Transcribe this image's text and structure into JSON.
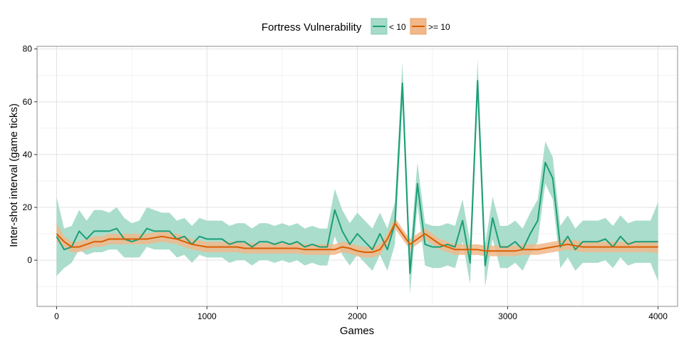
{
  "chart_data": {
    "type": "line",
    "xlabel": "Games",
    "ylabel": "Inter-shot interval (game ticks)",
    "xlim": [
      -130,
      4130
    ],
    "ylim": [
      -17.5,
      81
    ],
    "x_ticks": [
      0,
      1000,
      2000,
      3000,
      4000
    ],
    "x_tick_labels": [
      "0",
      "1000",
      "2000",
      "3000",
      "4000"
    ],
    "y_ticks": [
      0,
      20,
      40,
      60,
      80
    ],
    "y_tick_labels": [
      "0",
      "20",
      "40",
      "60",
      "80"
    ],
    "grid": true,
    "legend": {
      "title": "Fortress Vulnerability",
      "position": "top",
      "entries": [
        "< 10",
        ">= 10"
      ]
    },
    "series": [
      {
        "name": "< 10",
        "color": "#1b9e77",
        "fill": "#a6dbc9",
        "x": [
          0,
          50,
          100,
          150,
          200,
          250,
          300,
          350,
          400,
          450,
          500,
          550,
          600,
          650,
          700,
          750,
          800,
          850,
          900,
          950,
          1000,
          1050,
          1100,
          1150,
          1200,
          1250,
          1300,
          1350,
          1400,
          1450,
          1500,
          1550,
          1600,
          1650,
          1700,
          1750,
          1800,
          1850,
          1900,
          1950,
          2000,
          2050,
          2100,
          2150,
          2200,
          2250,
          2300,
          2350,
          2400,
          2450,
          2500,
          2550,
          2600,
          2650,
          2700,
          2750,
          2800,
          2850,
          2900,
          2950,
          3000,
          3050,
          3100,
          3150,
          3200,
          3250,
          3300,
          3350,
          3400,
          3450,
          3500,
          3550,
          3600,
          3650,
          3700,
          3750,
          3800,
          3850,
          3900,
          3950,
          4000
        ],
        "y": [
          9,
          4,
          5,
          11,
          8,
          11,
          11,
          11,
          12,
          8,
          7,
          8,
          12,
          11,
          11,
          11,
          8,
          9,
          6,
          9,
          8,
          8,
          8,
          6,
          7,
          7,
          5,
          7,
          7,
          6,
          7,
          6,
          7,
          5,
          6,
          5,
          5,
          19,
          11,
          6,
          10,
          7,
          4,
          10,
          4,
          14,
          67,
          -5,
          29,
          6,
          5,
          5,
          6,
          5,
          15,
          -1,
          68,
          -2,
          16,
          5,
          5,
          7,
          4,
          10,
          15,
          37,
          31,
          5,
          9,
          4,
          7,
          7,
          7,
          8,
          5,
          9,
          6,
          7,
          7,
          7,
          7
        ],
        "lower": [
          -6,
          -3,
          -1,
          4,
          2,
          3,
          3,
          4,
          4,
          1,
          1,
          1,
          5,
          4,
          4,
          4,
          1,
          2,
          -1,
          2,
          1,
          1,
          1,
          -1,
          0,
          0,
          -2,
          0,
          0,
          -1,
          0,
          -1,
          0,
          -2,
          -1,
          -2,
          -2,
          9,
          2,
          -2,
          2,
          -1,
          -4,
          2,
          -4,
          6,
          59,
          -13,
          21,
          -2,
          -3,
          -3,
          -2,
          -3,
          7,
          -9,
          60,
          -10,
          8,
          -3,
          -3,
          -1,
          -4,
          2,
          7,
          29,
          23,
          -3,
          1,
          -4,
          -1,
          -1,
          -1,
          0,
          -3,
          1,
          -2,
          -1,
          -1,
          -1,
          -8
        ],
        "upper": [
          24,
          12,
          13,
          19,
          15,
          19,
          19,
          18,
          20,
          16,
          14,
          15,
          20,
          19,
          18,
          18,
          15,
          16,
          13,
          16,
          15,
          15,
          15,
          13,
          14,
          14,
          12,
          14,
          14,
          13,
          14,
          13,
          14,
          12,
          13,
          12,
          12,
          27,
          19,
          14,
          18,
          15,
          12,
          18,
          12,
          22,
          75,
          3,
          37,
          14,
          13,
          13,
          14,
          13,
          23,
          7,
          76,
          6,
          24,
          13,
          13,
          15,
          12,
          18,
          23,
          45,
          39,
          13,
          17,
          12,
          15,
          15,
          15,
          16,
          13,
          17,
          14,
          15,
          15,
          15,
          22
        ]
      },
      {
        "name": ">= 10",
        "color": "#d95f02",
        "fill": "#f0b88b",
        "x": [
          0,
          50,
          100,
          150,
          200,
          250,
          300,
          350,
          400,
          450,
          500,
          550,
          600,
          650,
          700,
          750,
          800,
          850,
          900,
          950,
          1000,
          1050,
          1100,
          1150,
          1200,
          1250,
          1300,
          1350,
          1400,
          1450,
          1500,
          1550,
          1600,
          1650,
          1700,
          1750,
          1800,
          1850,
          1900,
          1950,
          2000,
          2050,
          2100,
          2150,
          2200,
          2250,
          2300,
          2350,
          2400,
          2450,
          2500,
          2550,
          2600,
          2650,
          2700,
          2750,
          2800,
          2850,
          2900,
          2950,
          3000,
          3050,
          3100,
          3150,
          3200,
          3250,
          3300,
          3350,
          3400,
          3450,
          3500,
          3550,
          3600,
          3650,
          3700,
          3750,
          3800,
          3850,
          3900,
          3950,
          4000
        ],
        "y": [
          10,
          7,
          5,
          5,
          6,
          7,
          7,
          8,
          8,
          8,
          8,
          8,
          8,
          8.5,
          9,
          8.5,
          8,
          7,
          6,
          5.5,
          5,
          5,
          5,
          5,
          5,
          4.5,
          4.5,
          4.5,
          4.5,
          4.5,
          4.5,
          4.5,
          4.5,
          4,
          4,
          4,
          4,
          4,
          5,
          4.5,
          3.5,
          3,
          3,
          4,
          8,
          14,
          10,
          6,
          8,
          10,
          8,
          6,
          5,
          4,
          4,
          4,
          4,
          3.5,
          3.5,
          3.5,
          3.5,
          3.5,
          4,
          4,
          4,
          4.5,
          5,
          5.5,
          6,
          5.5,
          5,
          5,
          5,
          5,
          5,
          5,
          5,
          5,
          5,
          5,
          5
        ],
        "lower": [
          7,
          5,
          3,
          3,
          4,
          5,
          5,
          6,
          6,
          6,
          6,
          6,
          6,
          6.5,
          7,
          6.5,
          6,
          5,
          4,
          3.5,
          3,
          3,
          3,
          3,
          3,
          2.5,
          2.5,
          2.5,
          2.5,
          2.5,
          2.5,
          2.5,
          2.5,
          2,
          2,
          2,
          2,
          2,
          3,
          2.5,
          1.5,
          1,
          1,
          2,
          6,
          12,
          8,
          4,
          6,
          8,
          6,
          4,
          3,
          2,
          2,
          2,
          2,
          1.5,
          1.5,
          1.5,
          1.5,
          1.5,
          2,
          2,
          2,
          2.5,
          3,
          3.5,
          4,
          3.5,
          3,
          3,
          3,
          3,
          3,
          3,
          3,
          3,
          3,
          3,
          2.5
        ],
        "upper": [
          14,
          9,
          7,
          7,
          8,
          9,
          9,
          10,
          10,
          10,
          10,
          10,
          10,
          10.5,
          11,
          10.5,
          10,
          9,
          8,
          7.5,
          7,
          7,
          7,
          7,
          7,
          6.5,
          6.5,
          6.5,
          6.5,
          6.5,
          6.5,
          6.5,
          6.5,
          6,
          6,
          6,
          6,
          6,
          7,
          6.5,
          5.5,
          5,
          5,
          6,
          10,
          16,
          12,
          8,
          10,
          12,
          10,
          8,
          7,
          6,
          6,
          6,
          6,
          5.5,
          5.5,
          5.5,
          5.5,
          5.5,
          6,
          6,
          6,
          6.5,
          7,
          7.5,
          8,
          7.5,
          7,
          7,
          7,
          7,
          7,
          7,
          7,
          7,
          7,
          7,
          7.5
        ]
      }
    ]
  }
}
